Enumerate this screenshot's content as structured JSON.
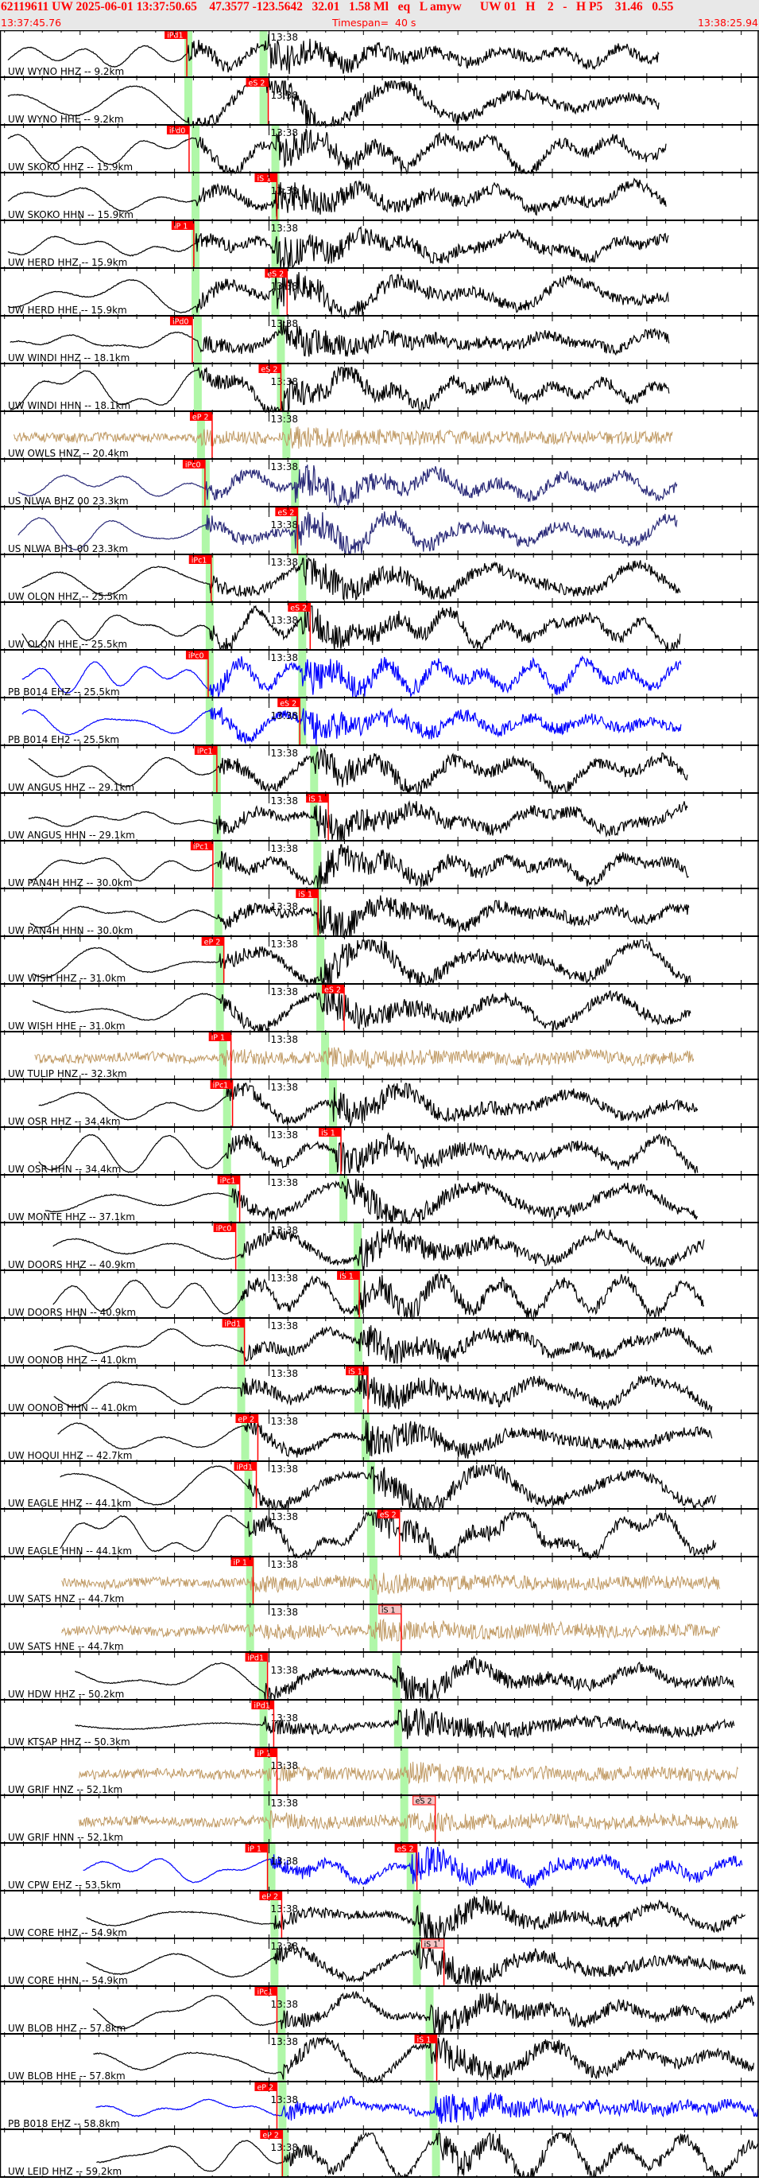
{
  "header": {
    "event_line": "62119611 UW 2025-06-01 13:37:50.65    47.3577 -123.5642   32.01   1.58 Ml   eq   L amyw      UW 01   H    2   -   H P5    31.46   0.55",
    "start_time": "13:37:45.76",
    "timespan": "Timespan=  40 s",
    "end_time": "13:38:25.94"
  },
  "minute_label": "13:38",
  "minute_time": "13:38:00.00",
  "colors": {
    "pick": "#ff0000",
    "pick_pale": "#f4c4c4",
    "predicted_window": "#b0f7a8",
    "header_bg": "#e8e8e8",
    "header_text": "#ff0000"
  },
  "traces": [
    {
      "label": "UW WYNO HHZ -- 9.2km",
      "color": "#000000",
      "data": [
        "13:37:46.18",
        "13:38:20.65"
      ],
      "pred_p": "13:37:55.73",
      "pred_s": "13:37:59.71",
      "picks": [
        {
          "label": "iPd1",
          "time": "13:37:55.65"
        }
      ]
    },
    {
      "label": "UW WYNO HHE -- 9.2km",
      "color": "#000000",
      "data": [
        "13:37:46.18",
        "13:38:20.65"
      ],
      "pred_p": "13:37:55.73",
      "pred_s": "13:37:59.71",
      "picks": [
        {
          "label": "eS 2",
          "time": "13:37:59.96"
        }
      ]
    },
    {
      "label": "UW SKOKO HHZ -- 15.9km",
      "color": "#000000",
      "data": [
        "13:37:46.18",
        "13:38:21.03"
      ],
      "pred_p": "13:37:56.11",
      "pred_s": "13:38:00.34",
      "picks": [
        {
          "label": "iPd0",
          "time": "13:37:55.77"
        }
      ]
    },
    {
      "label": "UW SKOKO HHN -- 15.9km",
      "color": "#000000",
      "data": [
        "13:37:46.18",
        "13:38:21.03"
      ],
      "pred_p": "13:37:56.11",
      "pred_s": "13:38:00.34",
      "picks": [
        {
          "label": "iS 1",
          "time": "13:38:00.42"
        }
      ]
    },
    {
      "label": "UW HERD HHZ -- 15.9km",
      "color": "#000000",
      "data": [
        "13:37:46.18",
        "13:38:21.15"
      ],
      "pred_p": "13:37:56.11",
      "pred_s": "13:38:00.34",
      "picks": [
        {
          "label": "iP 1",
          "time": "13:37:56.02"
        }
      ]
    },
    {
      "label": "UW HERD HHE -- 15.9km",
      "color": "#000000",
      "data": [
        "13:37:46.18",
        "13:38:21.15"
      ],
      "pred_p": "13:37:56.11",
      "pred_s": "13:38:00.34",
      "picks": [
        {
          "label": "eS 2",
          "time": "13:38:00.96"
        }
      ]
    },
    {
      "label": "UW WINDI HHZ -- 18.1km",
      "color": "#000000",
      "data": [
        "13:37:46.30",
        "13:38:21.19"
      ],
      "pred_p": "13:37:56.23",
      "pred_s": "13:38:00.63",
      "picks": [
        {
          "label": "iPd0",
          "time": "13:37:55.94"
        }
      ]
    },
    {
      "label": "UW WINDI HHN -- 18.1km",
      "color": "#000000",
      "data": [
        "13:37:46.30",
        "13:38:21.19"
      ],
      "pred_p": "13:37:56.23",
      "pred_s": "13:38:00.63",
      "picks": [
        {
          "label": "eS 2",
          "time": "13:38:00.63"
        }
      ]
    },
    {
      "label": "UW OWLS HNZ -- 20.4km",
      "color": "#c09a64",
      "data": [
        "13:37:46.47",
        "13:38:21.36"
      ],
      "pred_p": "13:37:56.40",
      "pred_s": "13:38:00.92",
      "picks": [
        {
          "label": "eP 2",
          "time": "13:37:56.99"
        }
      ]
    },
    {
      "label": "US NLWA BHZ 00 23.3km",
      "color": "#2a2a78",
      "data": [
        "13:37:46.72",
        "13:38:21.61"
      ],
      "pred_p": "13:37:56.65",
      "pred_s": "13:38:01.38",
      "picks": [
        {
          "label": "iPc0",
          "time": "13:37:56.61"
        }
      ]
    },
    {
      "label": "US NLWA BH1 00 23.3km",
      "color": "#2a2a78",
      "data": [
        "13:37:46.72",
        "13:38:21.61"
      ],
      "pred_p": "13:37:56.65",
      "pred_s": "13:38:01.38",
      "picks": [
        {
          "label": "eS 2",
          "time": "13:38:01.51"
        }
      ]
    },
    {
      "label": "UW OLQN HHZ -- 25.5km",
      "color": "#000000",
      "data": [
        "13:37:46.93",
        "13:38:21.78"
      ],
      "pred_p": "13:37:56.86",
      "pred_s": "13:38:01.76",
      "picks": [
        {
          "label": "iPc1",
          "time": "13:37:56.94"
        }
      ]
    },
    {
      "label": "UW OLQN HHE -- 25.5km",
      "color": "#000000",
      "data": [
        "13:37:46.93",
        "13:38:21.78"
      ],
      "pred_p": "13:37:56.86",
      "pred_s": "13:38:01.76",
      "picks": [
        {
          "label": "eS 2",
          "time": "13:38:02.18"
        }
      ]
    },
    {
      "label": "PB B014 EHZ -- 25.5km",
      "color": "#0000ff",
      "data": [
        "13:37:46.93",
        "13:38:21.82"
      ],
      "pred_p": "13:37:56.86",
      "pred_s": "13:38:01.76",
      "picks": [
        {
          "label": "iPc0",
          "time": "13:37:56.78"
        }
      ]
    },
    {
      "label": "PB B014 EH2 -- 25.5km",
      "color": "#0000ff",
      "data": [
        "13:37:46.93",
        "13:38:21.82"
      ],
      "pred_p": "13:37:56.86",
      "pred_s": "13:38:01.76",
      "picks": [
        {
          "label": "eS 2",
          "time": "13:38:01.63"
        }
      ]
    },
    {
      "label": "UW ANGUS HHZ -- 29.1km",
      "color": "#000000",
      "data": [
        "13:37:47.27",
        "13:38:22.16"
      ],
      "pred_p": "13:37:57.24",
      "pred_s": "13:38:02.39",
      "picks": [
        {
          "label": "iPc1",
          "time": "13:37:57.24"
        }
      ]
    },
    {
      "label": "UW ANGUS HHN -- 29.1km",
      "color": "#000000",
      "data": [
        "13:37:47.27",
        "13:38:22.16"
      ],
      "pred_p": "13:37:57.24",
      "pred_s": "13:38:02.39",
      "picks": [
        {
          "label": "iS 1",
          "time": "13:38:03.14"
        }
      ]
    },
    {
      "label": "UW PAN4H HHZ -- 30.0km",
      "color": "#000000",
      "data": [
        "13:37:47.35",
        "13:38:22.24"
      ],
      "pred_p": "13:37:57.32",
      "pred_s": "13:38:02.56",
      "picks": [
        {
          "label": "iPc1",
          "time": "13:37:57.03"
        }
      ]
    },
    {
      "label": "UW PAN4H HHN -- 30.0km",
      "color": "#000000",
      "data": [
        "13:37:47.35",
        "13:38:22.24"
      ],
      "pred_p": "13:37:57.32",
      "pred_s": "13:38:02.56",
      "picks": [
        {
          "label": "iS 1",
          "time": "13:38:02.60"
        }
      ]
    },
    {
      "label": "UW WISH HHZ -- 31.0km",
      "color": "#000000",
      "data": [
        "13:37:47.48",
        "13:38:22.33"
      ],
      "pred_p": "13:37:57.40",
      "pred_s": "13:38:02.72",
      "picks": [
        {
          "label": "eP 2",
          "time": "13:37:57.61"
        }
      ]
    },
    {
      "label": "UW WISH HHE -- 31.0km",
      "color": "#000000",
      "data": [
        "13:37:47.48",
        "13:38:22.33"
      ],
      "pred_p": "13:37:57.40",
      "pred_s": "13:38:02.72",
      "picks": [
        {
          "label": "eS 2",
          "time": "13:38:03.98"
        }
      ]
    },
    {
      "label": "UW TULIP HNZ -- 32.3km",
      "color": "#c09a64",
      "data": [
        "13:37:47.60",
        "13:38:22.49"
      ],
      "pred_p": "13:37:57.57",
      "pred_s": "13:38:02.97",
      "picks": [
        {
          "label": "iP 1",
          "time": "13:37:57.99"
        }
      ]
    },
    {
      "label": "UW OSR HHZ -- 34.4km",
      "color": "#000000",
      "data": [
        "13:37:47.81",
        "13:38:22.70"
      ],
      "pred_p": "13:37:57.78",
      "pred_s": "13:38:03.39",
      "picks": [
        {
          "label": "iPc1",
          "time": "13:37:58.07"
        }
      ]
    },
    {
      "label": "UW OSR HHN -- 34.4km",
      "color": "#000000",
      "data": [
        "13:37:47.81",
        "13:38:22.70"
      ],
      "pred_p": "13:37:57.78",
      "pred_s": "13:38:03.39",
      "picks": [
        {
          "label": "iS 1",
          "time": "13:38:03.81"
        }
      ]
    },
    {
      "label": "UW MONTE HHZ -- 37.1km",
      "color": "#000000",
      "data": [
        "13:37:48.15",
        "13:38:22.70"
      ],
      "pred_p": "13:37:58.07",
      "pred_s": "13:38:03.94",
      "picks": [
        {
          "label": "iPc1",
          "time": "13:37:58.45"
        }
      ]
    },
    {
      "label": "UW DOORS HHZ -- 40.9km",
      "color": "#000000",
      "data": [
        "13:37:48.57",
        "13:38:23.04"
      ],
      "pred_p": "13:37:58.53",
      "pred_s": "13:38:04.69",
      "picks": [
        {
          "label": "iPc0",
          "time": "13:37:58.24"
        }
      ]
    },
    {
      "label": "UW DOORS HHN -- 40.9km",
      "color": "#000000",
      "data": [
        "13:37:48.57",
        "13:38:23.04"
      ],
      "pred_p": "13:37:58.53",
      "pred_s": "13:38:04.69",
      "picks": [
        {
          "label": "iS 1",
          "time": "13:38:04.78"
        }
      ]
    },
    {
      "label": "UW OONOB HHZ -- 41.0km",
      "color": "#000000",
      "data": [
        "13:37:48.61",
        "13:38:23.46"
      ],
      "pred_p": "13:37:58.53",
      "pred_s": "13:38:04.73",
      "picks": [
        {
          "label": "iPd1",
          "time": "13:37:58.70"
        }
      ]
    },
    {
      "label": "UW OONOB HHN -- 41.0km",
      "color": "#000000",
      "data": [
        "13:37:48.61",
        "13:38:23.46"
      ],
      "pred_p": "13:37:58.53",
      "pred_s": "13:38:04.73",
      "picks": [
        {
          "label": "iS 1",
          "time": "13:38:05.24"
        }
      ]
    },
    {
      "label": "UW HOQUI HHZ -- 42.7km",
      "color": "#000000",
      "data": [
        "13:37:48.82",
        "13:38:23.46"
      ],
      "pred_p": "13:37:58.74",
      "pred_s": "13:38:05.11",
      "picks": [
        {
          "label": "eP 2",
          "time": "13:37:59.41"
        }
      ]
    },
    {
      "label": "UW EAGLE HHZ -- 44.1km",
      "color": "#000000",
      "data": [
        "13:37:48.94",
        "13:38:23.67"
      ],
      "pred_p": "13:37:58.91",
      "pred_s": "13:38:05.40",
      "picks": [
        {
          "label": "iPd1",
          "time": "13:37:59.33"
        }
      ]
    },
    {
      "label": "UW EAGLE HHN -- 44.1km",
      "color": "#000000",
      "data": [
        "13:37:48.94",
        "13:38:23.67"
      ],
      "pred_p": "13:37:58.91",
      "pred_s": "13:38:05.40",
      "picks": [
        {
          "label": "eS 2",
          "time": "13:38:06.91"
        }
      ]
    },
    {
      "label": "UW SATS HNZ -- 44.7km",
      "color": "#c09a64",
      "data": [
        "13:37:49.03",
        "13:38:23.88"
      ],
      "pred_p": "13:37:59.00",
      "pred_s": "13:38:05.53",
      "picks": [
        {
          "label": "iP 1",
          "time": "13:37:59.16"
        }
      ]
    },
    {
      "label": "UW SATS HNE -- 44.7km",
      "color": "#c09a64",
      "data": [
        "13:37:49.03",
        "13:38:23.88"
      ],
      "pred_p": "13:37:59.00",
      "pred_s": "13:38:05.53",
      "picks": [
        {
          "label": "iS 1",
          "time": "13:38:07.00",
          "style": "pale"
        }
      ]
    },
    {
      "label": "UW HDW HHZ -- 50.2km",
      "color": "#000000",
      "data": [
        "13:37:49.74",
        "13:38:24.63"
      ],
      "pred_p": "13:37:59.67",
      "pred_s": "13:38:06.74",
      "picks": [
        {
          "label": "iPd1",
          "time": "13:37:59.92"
        }
      ]
    },
    {
      "label": "UW KTSAP HHZ -- 50.3km",
      "color": "#000000",
      "data": [
        "13:37:49.74",
        "13:38:24.63"
      ],
      "pred_p": "13:37:59.71",
      "pred_s": "13:38:06.83",
      "picks": [
        {
          "label": "iPd1",
          "time": "13:38:00.25"
        }
      ]
    },
    {
      "label": "UW GRIF HNZ -- 52.1km",
      "color": "#c09a64",
      "data": [
        "13:37:49.95",
        "13:38:24.84"
      ],
      "pred_p": "13:37:59.92",
      "pred_s": "13:38:07.16",
      "picks": [
        {
          "label": "iP 1",
          "time": "13:38:00.42"
        }
      ]
    },
    {
      "label": "UW GRIF HNN -- 52.1km",
      "color": "#c09a64",
      "data": [
        "13:37:49.95",
        "13:38:24.84"
      ],
      "pred_p": "13:37:59.92",
      "pred_s": "13:38:07.16",
      "picks": [
        {
          "label": "eS 2",
          "time": "13:38:08.80",
          "style": "pale"
        }
      ]
    },
    {
      "label": "UW CPW EHZ -- 53.5km",
      "color": "#0000ff",
      "data": [
        "13:37:50.16",
        "13:38:25.05"
      ],
      "pred_p": "13:38:00.13",
      "pred_s": "13:38:07.50",
      "picks": [
        {
          "label": "iP 1",
          "time": "13:37:59.92"
        },
        {
          "label": "eS 2",
          "time": "13:38:07.83"
        }
      ]
    },
    {
      "label": "UW CORE HHZ -- 54.9km",
      "color": "#000000",
      "data": [
        "13:37:50.33",
        "13:38:25.22"
      ],
      "pred_p": "13:38:00.29",
      "pred_s": "13:38:07.83",
      "picks": [
        {
          "label": "eP 2",
          "time": "13:38:00.67"
        }
      ]
    },
    {
      "label": "UW CORE HHN -- 54.9km",
      "color": "#000000",
      "data": [
        "13:37:50.33",
        "13:38:25.22"
      ],
      "pred_p": "13:38:00.29",
      "pred_s": "13:38:07.83",
      "picks": [
        {
          "label": "iS 1",
          "time": "13:38:09.26",
          "style": "pale"
        }
      ]
    },
    {
      "label": "UW BLOB HHZ -- 57.8km",
      "color": "#000000",
      "data": [
        "13:37:50.70",
        "13:38:25.70"
      ],
      "pred_p": "13:38:00.67",
      "pred_s": "13:38:08.50",
      "picks": [
        {
          "label": "iPc1",
          "time": "13:38:00.42"
        }
      ]
    },
    {
      "label": "UW BLOB HHE -- 57.8km",
      "color": "#000000",
      "data": [
        "13:37:50.70",
        "13:38:25.70"
      ],
      "pred_p": "13:38:00.67",
      "pred_s": "13:38:08.50",
      "picks": [
        {
          "label": "iS 1",
          "time": "13:38:08.88"
        }
      ]
    },
    {
      "label": "PB B018 EHZ -- 58.8km",
      "color": "#0000ff",
      "data": [
        "13:37:50.83",
        "13:38:25.94"
      ],
      "pred_p": "13:38:00.71",
      "pred_s": "13:38:08.71",
      "picks": [
        {
          "label": "eP 2",
          "time": "13:38:00.42"
        }
      ]
    },
    {
      "label": "UW LEID HHZ -- 59.2km",
      "color": "#000000",
      "data": [
        "13:37:50.87",
        "13:38:25.94"
      ],
      "pred_p": "13:38:00.84",
      "pred_s": "13:38:08.84",
      "picks": [
        {
          "label": "eP 2",
          "time": "13:38:00.71"
        }
      ]
    }
  ]
}
